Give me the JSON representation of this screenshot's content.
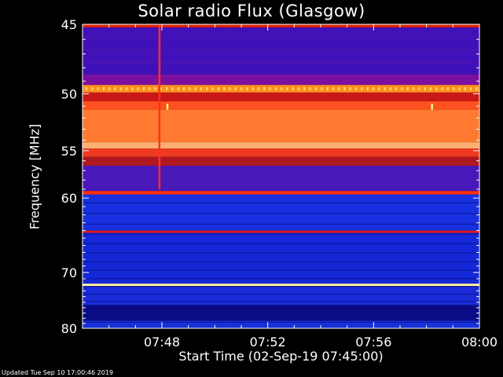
{
  "title": "Solar radio Flux (Glasgow)",
  "updated": "Updated Tue Sep 10 17:00:46 2019",
  "chart_data": {
    "type": "heatmap",
    "title": "Solar radio Flux (Glasgow)",
    "xlabel": "Start Time (02-Sep-19 07:45:00)",
    "ylabel_main": "Frequency ",
    "ylabel_unit": "[MHz]",
    "x_ticks": [
      "07:48",
      "07:52",
      "07:56",
      "08:00"
    ],
    "x_tick_minutes": [
      3,
      7,
      11,
      15
    ],
    "x_range_minutes": [
      0,
      15
    ],
    "y_ticks": [
      "45",
      "50",
      "55",
      "60",
      "70",
      "80"
    ],
    "y_tick_values": [
      45,
      50,
      55,
      60,
      70,
      80
    ],
    "y_range": [
      45,
      80
    ],
    "bands": [
      {
        "f0": 44.8,
        "f1": 45.2,
        "color": "#e02000"
      },
      {
        "f0": 45.2,
        "f1": 48.5,
        "color": "#4010b8"
      },
      {
        "f0": 48.5,
        "f1": 49.3,
        "color": "#7a10a0"
      },
      {
        "f0": 49.3,
        "f1": 49.9,
        "color": "#ff9020"
      },
      {
        "f0": 49.9,
        "f1": 50.6,
        "color": "#c81818"
      },
      {
        "f0": 50.6,
        "f1": 51.3,
        "color": "#ff5020"
      },
      {
        "f0": 51.3,
        "f1": 54.2,
        "color": "#ff7a30"
      },
      {
        "f0": 54.2,
        "f1": 54.8,
        "color": "#ffb070"
      },
      {
        "f0": 54.8,
        "f1": 55.6,
        "color": "#ee3a20"
      },
      {
        "f0": 55.6,
        "f1": 56.5,
        "color": "#b01820"
      },
      {
        "f0": 56.5,
        "f1": 59.2,
        "color": "#4818b8"
      },
      {
        "f0": 59.2,
        "f1": 59.6,
        "color": "#ff3010"
      },
      {
        "f0": 59.6,
        "f1": 64.0,
        "color": "#1830e0"
      },
      {
        "f0": 64.0,
        "f1": 64.3,
        "color": "#e01818"
      },
      {
        "f0": 64.3,
        "f1": 71.8,
        "color": "#1428d8"
      },
      {
        "f0": 71.8,
        "f1": 72.2,
        "color": "#fff4a0"
      },
      {
        "f0": 72.2,
        "f1": 75.5,
        "color": "#1a2cd8"
      },
      {
        "f0": 75.5,
        "f1": 78.5,
        "color": "#0a0c88"
      },
      {
        "f0": 78.5,
        "f1": 80.4,
        "color": "#1830d8"
      }
    ],
    "bursts": [
      {
        "minute": 2.9,
        "f0": 45,
        "f1": 59,
        "color": "#ff3020"
      },
      {
        "minute": 3.2,
        "f0": 50.8,
        "f1": 51.3,
        "color": "#ffff80"
      },
      {
        "minute": 13.2,
        "f0": 50.8,
        "f1": 51.3,
        "color": "#ffff80"
      }
    ],
    "colors": {
      "background": "#000000",
      "axes": "#ffffff"
    }
  }
}
